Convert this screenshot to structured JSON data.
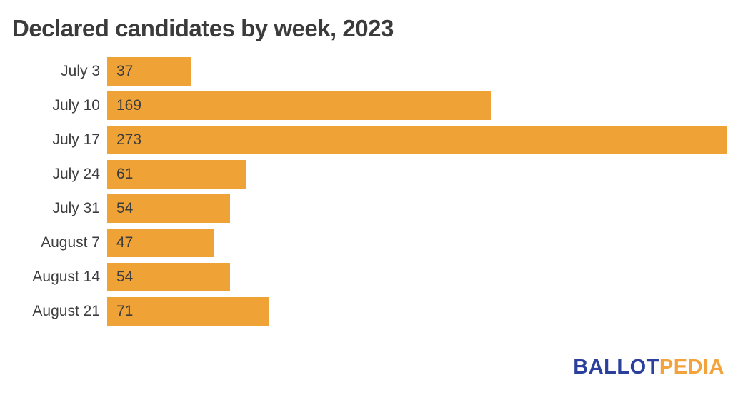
{
  "title": "Declared candidates by week, 2023",
  "colors": {
    "bar": "#efa236",
    "title_text": "#3b3b3b",
    "label_text": "#3e3e3e",
    "logo_blue": "#2b3f9c",
    "logo_orange": "#f2a33c",
    "background": "#ffffff"
  },
  "chart_data": {
    "type": "bar",
    "orientation": "horizontal",
    "title": "Declared candidates by week, 2023",
    "categories": [
      "July 3",
      "July 10",
      "July 17",
      "July 24",
      "July 31",
      "August 7",
      "August 14",
      "August 21"
    ],
    "values": [
      37,
      169,
      273,
      61,
      54,
      47,
      54,
      71
    ],
    "xlabel": "",
    "ylabel": "",
    "xlim": [
      0,
      273
    ],
    "grid": false,
    "legend": false,
    "value_label_position": "inside-left",
    "bar_color": "#efa236"
  },
  "logo": {
    "part1": "BALLOT",
    "part2": "PEDIA"
  }
}
